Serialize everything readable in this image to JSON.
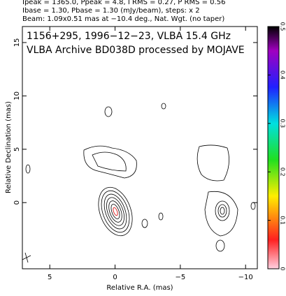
{
  "header": [
    "Ipeak = 1365.0, Ppeak = 4.8, I RMS = 0.27, P RMS = 0.56",
    "Ibase = 1.30, Pbase = 1.30 (mJy/beam), steps: x 2",
    "Beam: 1.09x0.51 mas at −10.4 deg., Nat. Wgt. (no taper)"
  ],
  "chart_data": {
    "type": "contour",
    "annotations": [
      "1156+295, 1996−12−23, VLBA 15.4 GHz",
      "VLBA Archive BD038D processed by MOJAVE"
    ],
    "x_label": "Relative R.A. (mas)",
    "y_label": "Relative Declination (mas)",
    "xlim": [
      7.1,
      -10.9
    ],
    "xticks": [
      5,
      0,
      {
        "value": -5,
        "label": "−5"
      },
      {
        "value": -10,
        "label": "−10"
      }
    ],
    "ylim": [
      -6.2,
      16.5
    ],
    "yticks": [
      0,
      5,
      10,
      15
    ],
    "colorbar_lim": [
      0,
      0.5
    ],
    "colorbar_ticks": [
      0,
      0.1,
      0.2,
      0.3,
      0.4,
      0.5
    ]
  }
}
